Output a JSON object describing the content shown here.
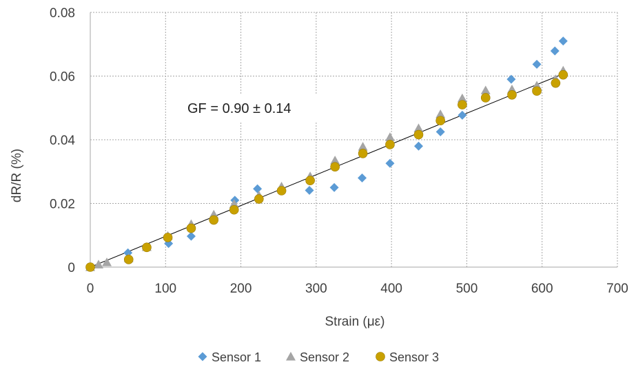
{
  "chart_data": {
    "type": "scatter",
    "title": "",
    "xlabel": "Strain (με)",
    "ylabel": "dR/R (%)",
    "xlim": [
      0,
      700
    ],
    "ylim": [
      0,
      0.08
    ],
    "x_ticks": [
      0,
      100,
      200,
      300,
      400,
      500,
      600,
      700
    ],
    "y_ticks": [
      0,
      0.02,
      0.04,
      0.06,
      0.08
    ],
    "y_tick_labels": [
      "0",
      "0.02",
      "0.04",
      "0.06",
      "0.08"
    ],
    "grid": true,
    "legend_position": "bottom",
    "annotation": "GF = 0.90 ± 0.14",
    "trendline": {
      "x": [
        0,
        628
      ],
      "y": [
        0,
        0.0607
      ],
      "color": "#000000"
    },
    "series": [
      {
        "name": "Sensor 1",
        "marker": "diamond",
        "color": "#5b9bd5",
        "points": [
          [
            0,
            0
          ],
          [
            50,
            0.0045
          ],
          [
            104,
            0.0074
          ],
          [
            134,
            0.0097
          ],
          [
            192,
            0.021
          ],
          [
            222,
            0.0246
          ],
          [
            291,
            0.0241
          ],
          [
            324,
            0.025
          ],
          [
            361,
            0.028
          ],
          [
            398,
            0.0326
          ],
          [
            436,
            0.038
          ],
          [
            465,
            0.0425
          ],
          [
            494,
            0.0477
          ],
          [
            559,
            0.059
          ],
          [
            593,
            0.0637
          ],
          [
            617,
            0.0679
          ],
          [
            628,
            0.071
          ]
        ]
      },
      {
        "name": "Sensor 2",
        "marker": "triangle",
        "color": "#a5a5a5",
        "points": [
          [
            0,
            0
          ],
          [
            11,
            0.0008
          ],
          [
            22,
            0.0015
          ],
          [
            51,
            0.0028
          ],
          [
            75,
            0.0063
          ],
          [
            103,
            0.0098
          ],
          [
            134,
            0.0135
          ],
          [
            164,
            0.0165
          ],
          [
            191,
            0.0198
          ],
          [
            224,
            0.0225
          ],
          [
            254,
            0.0253
          ],
          [
            292,
            0.0285
          ],
          [
            325,
            0.0335
          ],
          [
            362,
            0.0378
          ],
          [
            398,
            0.0408
          ],
          [
            436,
            0.0436
          ],
          [
            465,
            0.048
          ],
          [
            494,
            0.053
          ],
          [
            525,
            0.0555
          ],
          [
            560,
            0.0558
          ],
          [
            593,
            0.057
          ],
          [
            618,
            0.059
          ],
          [
            628,
            0.0617
          ]
        ]
      },
      {
        "name": "Sensor 3",
        "marker": "circle",
        "color": "#c9a100",
        "points": [
          [
            0,
            0
          ],
          [
            51,
            0.0024
          ],
          [
            75,
            0.0062
          ],
          [
            103,
            0.0093
          ],
          [
            134,
            0.0122
          ],
          [
            164,
            0.0148
          ],
          [
            191,
            0.018
          ],
          [
            224,
            0.0214
          ],
          [
            254,
            0.024
          ],
          [
            292,
            0.0272
          ],
          [
            325,
            0.0315
          ],
          [
            362,
            0.0357
          ],
          [
            398,
            0.0385
          ],
          [
            436,
            0.0416
          ],
          [
            465,
            0.046
          ],
          [
            494,
            0.051
          ],
          [
            525,
            0.0532
          ],
          [
            560,
            0.0541
          ],
          [
            593,
            0.0553
          ],
          [
            618,
            0.0578
          ],
          [
            628,
            0.0604
          ]
        ]
      }
    ]
  }
}
